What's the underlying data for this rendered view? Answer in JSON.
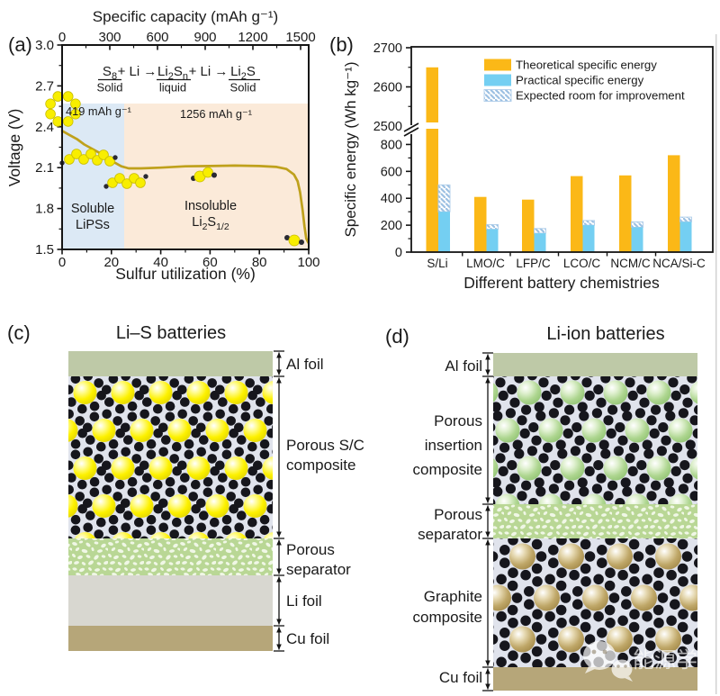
{
  "panels": {
    "a": {
      "tag": "(a)",
      "axes": {
        "top": {
          "label": "Specific capacity (mAh g⁻¹)",
          "ticks": [
            0,
            300,
            600,
            900,
            1200,
            1500
          ]
        },
        "left": {
          "label": "Voltage (V)",
          "ticks": [
            3.0,
            2.7,
            2.4,
            2.1,
            1.8,
            1.5
          ]
        },
        "bottom": {
          "label": "Sulfur utilization (%)",
          "ticks": [
            0,
            20,
            40,
            60,
            80,
            100
          ]
        }
      },
      "equation": {
        "operator": "+ Li →",
        "terms": [
          {
            "formula": [
              [
                "S",
                0
              ],
              [
                "8",
                1
              ]
            ],
            "state": "Solid"
          },
          {
            "formula": [
              [
                "Li",
                0
              ],
              [
                "2",
                1
              ],
              [
                "S",
                0
              ],
              [
                "n",
                1
              ]
            ],
            "state": "liquid"
          },
          {
            "formula": [
              [
                "Li",
                0
              ],
              [
                "2",
                1
              ],
              [
                "S",
                0
              ]
            ],
            "state": "Solid"
          }
        ]
      },
      "annotations": {
        "first": "419 mAh g⁻¹",
        "second": "1256 mAh g⁻¹"
      },
      "regions": [
        {
          "name": "soluble",
          "lines": [
            "Soluble",
            "LiPSs"
          ],
          "color": "#dce9f5",
          "x_range": [
            0,
            25
          ]
        },
        {
          "name": "insoluble",
          "lines": [
            "Insoluble"
          ],
          "formula": [
            [
              "Li",
              0
            ],
            [
              "2",
              1
            ],
            [
              "S",
              0
            ],
            [
              "1/2",
              1
            ]
          ],
          "color": "#fbead9",
          "x_range": [
            25,
            100
          ]
        }
      ],
      "molecules": [
        "s8-ring",
        "long-polysulfide-chain",
        "short-polysulfide-chain",
        "li2s2-molecule",
        "li2s-molecule"
      ]
    },
    "b": {
      "tag": "(b)"
    },
    "c": {
      "tag": "(c)",
      "title": "Li–S batteries",
      "layers": [
        {
          "lines": [
            "Al foil"
          ]
        },
        {
          "lines": [
            "Porous S/C",
            "composite"
          ]
        },
        {
          "lines": [
            "Porous",
            "separator"
          ]
        },
        {
          "lines": [
            "Li foil"
          ]
        },
        {
          "lines": [
            "Cu foil"
          ]
        }
      ]
    },
    "d": {
      "tag": "(d)",
      "title": "Li-ion batteries",
      "layers": [
        {
          "lines": [
            "Al foil"
          ]
        },
        {
          "lines": [
            "Porous",
            "insertion",
            "composite"
          ]
        },
        {
          "lines": [
            "Porous",
            "separator"
          ]
        },
        {
          "lines": [
            "Graphite",
            "composite"
          ]
        },
        {
          "lines": [
            "Cu foil"
          ]
        }
      ]
    }
  },
  "chart_data": [
    {
      "type": "line",
      "panel": "a",
      "title": "",
      "xlabel": "Sulfur utilization (%)",
      "ylabel": "Voltage (V)",
      "x2label": "Specific capacity (mAh g⁻¹)",
      "xlim": [
        0,
        100
      ],
      "ylim": [
        1.5,
        3.0
      ],
      "x2lim": [
        0,
        1575
      ],
      "line_color": "#bfa11c",
      "x": [
        0,
        3,
        6,
        9,
        12,
        15,
        18,
        21,
        24,
        27,
        32,
        40,
        50,
        60,
        70,
        80,
        87,
        91,
        94,
        95.5,
        96.5,
        97.5,
        98.3,
        99,
        99.8
      ],
      "y": [
        2.37,
        2.34,
        2.31,
        2.27,
        2.24,
        2.21,
        2.18,
        2.14,
        2.11,
        2.095,
        2.095,
        2.1,
        2.11,
        2.112,
        2.115,
        2.112,
        2.105,
        2.09,
        2.05,
        2.0,
        1.92,
        1.79,
        1.67,
        1.58,
        1.55
      ]
    },
    {
      "type": "bar",
      "panel": "b",
      "title": "",
      "xlabel": "Different battery chemistries",
      "ylabel": "Specific energy (Wh kg⁻¹)",
      "categories": [
        "S/Li",
        "LMO/C",
        "LFP/C",
        "LCO/C",
        "NCM/C",
        "NCA/Si-C"
      ],
      "series": [
        {
          "name": "Theoretical specific energy",
          "color": "#fbb817",
          "values": [
            2650,
            410,
            390,
            565,
            570,
            720
          ]
        },
        {
          "name": "Practical specific energy",
          "color": "#74cff2",
          "values": [
            300,
            170,
            140,
            200,
            185,
            225
          ]
        },
        {
          "name": "Expected room for improvement",
          "color": "hatched-blue",
          "values": [
            500,
            205,
            175,
            235,
            225,
            260
          ]
        }
      ],
      "y_axis": {
        "lower_ticks": [
          0,
          200,
          400,
          600,
          800
        ],
        "upper_ticks": [
          2500,
          2600,
          2700
        ],
        "break_between": [
          900,
          2500
        ]
      },
      "legend_position": "upper-center"
    }
  ],
  "watermark": {
    "icon": "wechat-icon",
    "text": "能源学人"
  },
  "colors": {
    "theoretical_bar": "#fbb817",
    "practical_bar": "#74cff2",
    "improvement_hatch": "#9cc0e2",
    "soluble_region": "#dce9f5",
    "insoluble_region": "#fbead9",
    "curve": "#bfa11c",
    "al_foil": "#bec9a7",
    "li_foil": "#d8d7d0",
    "cu_foil": "#b6a679",
    "separator": "#b9d795",
    "composite_bg": "#e0e3ec",
    "sulfur_particle": "#f6ec00",
    "insertion_particle": "#a5d287",
    "graphite_particle": "#b89f60",
    "carbon_particle": "#16161c"
  }
}
